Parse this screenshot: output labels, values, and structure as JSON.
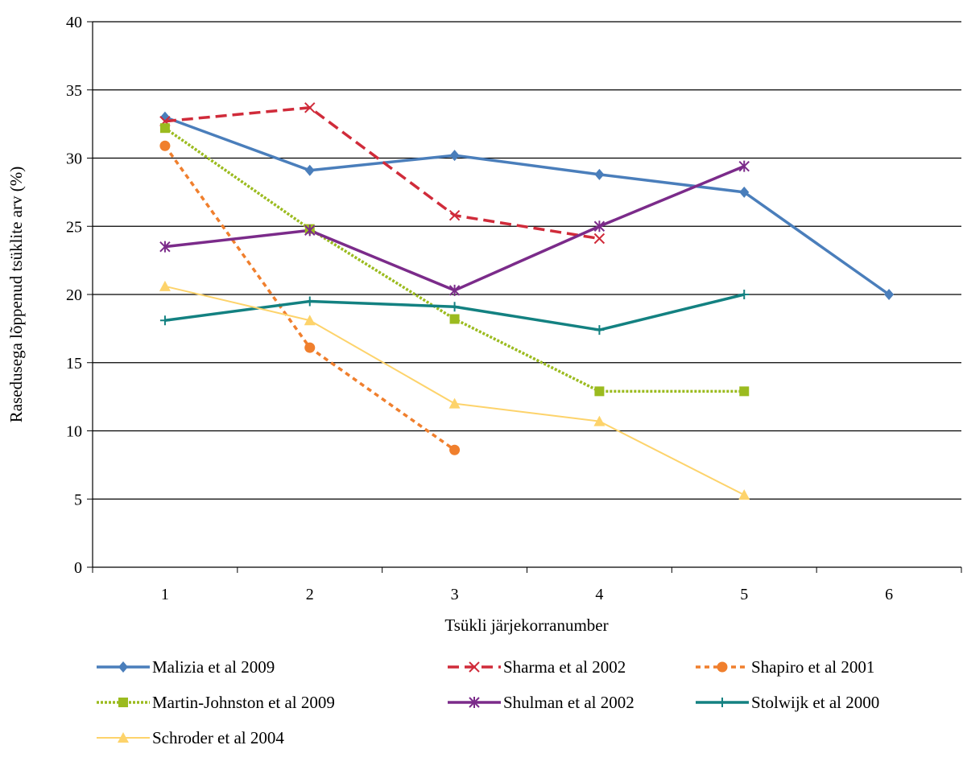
{
  "chart_data": {
    "type": "line",
    "xlabel": "Tsükli järjekorranumber",
    "ylabel": "Rasedusega lõppenud tsüklite arv (%)",
    "xlim": [
      0.5,
      6.5
    ],
    "ylim": [
      0,
      40
    ],
    "x_ticks": [
      "1",
      "2",
      "3",
      "4",
      "5",
      "6"
    ],
    "y_ticks": [
      "0",
      "5",
      "10",
      "15",
      "20",
      "25",
      "30",
      "35",
      "40"
    ],
    "grid": "horizontal",
    "legend_position": "bottom",
    "series": [
      {
        "name": "Malizia et al 2009",
        "color": "#4a7ebb",
        "marker": "diamond",
        "dash": "solid",
        "points": [
          [
            1,
            33.0
          ],
          [
            2,
            29.1
          ],
          [
            3,
            30.2
          ],
          [
            4,
            28.8
          ],
          [
            5,
            27.5
          ],
          [
            6,
            20.0
          ]
        ]
      },
      {
        "name": "Sharma et al 2002",
        "color": "#d02b3a",
        "marker": "x",
        "dash": "long-dash",
        "points": [
          [
            1,
            32.7
          ],
          [
            2,
            33.7
          ],
          [
            3,
            25.8
          ],
          [
            4,
            24.1
          ]
        ]
      },
      {
        "name": "Shapiro et al 2001",
        "color": "#f07f2d",
        "marker": "circle",
        "dash": "short-dash",
        "points": [
          [
            1,
            30.9
          ],
          [
            2,
            16.1
          ],
          [
            3,
            8.6
          ]
        ]
      },
      {
        "name": "Martin-Johnston et al 2009",
        "color": "#9bbb1f",
        "marker": "square",
        "dash": "dotted",
        "points": [
          [
            1,
            32.2
          ],
          [
            2,
            24.8
          ],
          [
            3,
            18.2
          ],
          [
            4,
            12.9
          ],
          [
            5,
            12.9
          ]
        ]
      },
      {
        "name": "Shulman et  al 2002",
        "color": "#7b2b8a",
        "marker": "star",
        "dash": "solid",
        "points": [
          [
            1,
            23.5
          ],
          [
            2,
            24.7
          ],
          [
            3,
            20.3
          ],
          [
            4,
            25.0
          ],
          [
            5,
            29.4
          ]
        ]
      },
      {
        "name": "Stolwijk et al 2000",
        "color": "#138181",
        "marker": "plus",
        "dash": "solid",
        "points": [
          [
            1,
            18.1
          ],
          [
            2,
            19.5
          ],
          [
            3,
            19.1
          ],
          [
            4,
            17.4
          ],
          [
            5,
            20.0
          ]
        ]
      },
      {
        "name": "Schroder et al 2004",
        "color": "#fdd36b",
        "marker": "triangle",
        "dash": "solid",
        "points": [
          [
            1,
            20.6
          ],
          [
            2,
            18.1
          ],
          [
            3,
            12.0
          ],
          [
            4,
            10.7
          ],
          [
            5,
            5.3
          ]
        ]
      }
    ]
  }
}
